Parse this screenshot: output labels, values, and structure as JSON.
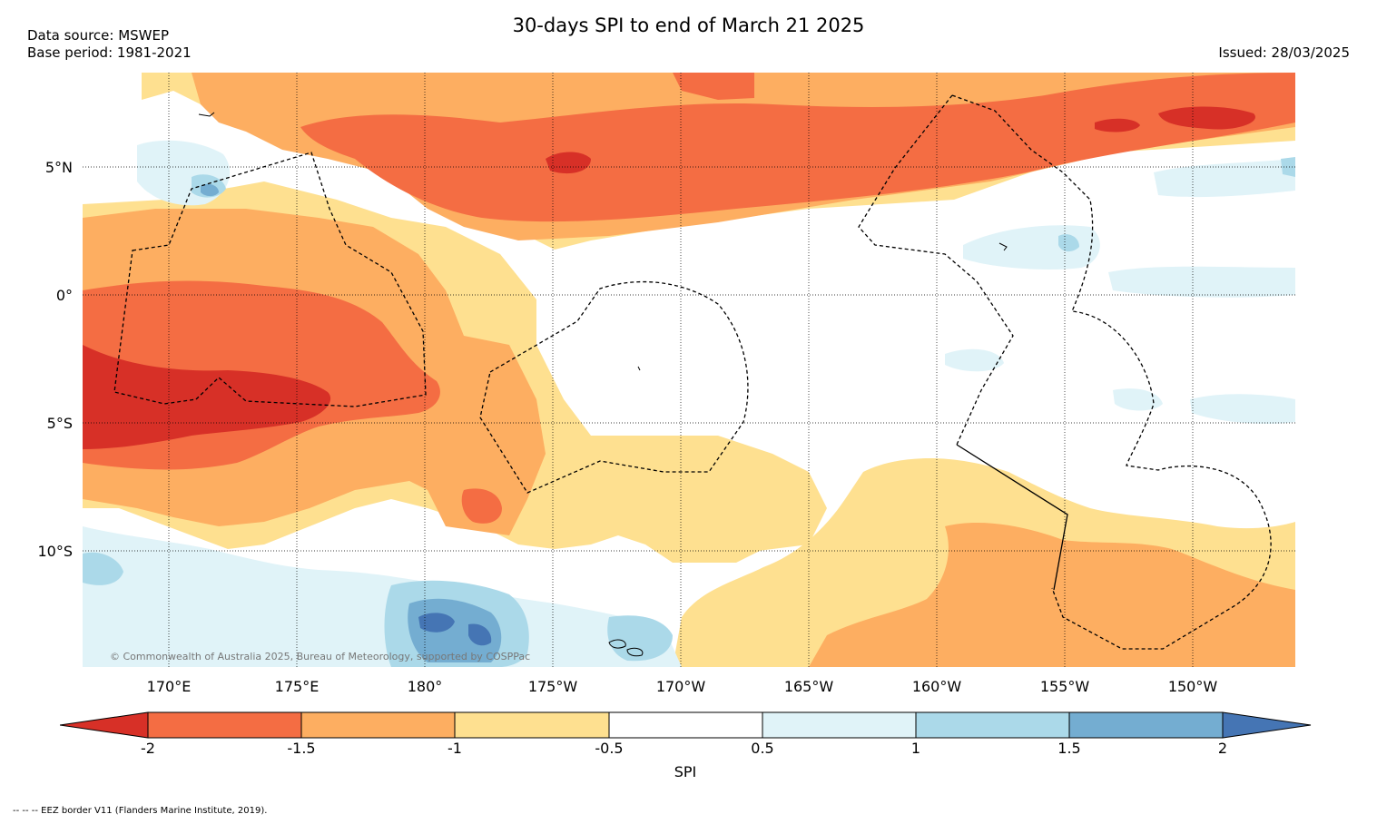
{
  "title": "30-days SPI to end of March 21 2025",
  "data_source": "Data source: MSWEP",
  "base_period": "Base period: 1981-2021",
  "issued": "Issued: 28/03/2025",
  "copyright": "© Commonwealth of Australia 2025, Bureau of Meteorology, supported by COSPPac",
  "footnote": "--  --  -- EEZ border V11 (Flanders Marine Institute, 2019).",
  "lat_labels": [
    "5°N",
    "0°",
    "5°S",
    "10°S"
  ],
  "lon_labels": [
    "170°E",
    "175°E",
    "180°",
    "175°W",
    "170°W",
    "165°W",
    "160°W",
    "155°W",
    "150°W"
  ],
  "colorbar": {
    "ticks": [
      "-2",
      "-1.5",
      "-1",
      "-0.5",
      "0.5",
      "1",
      "1.5",
      "2"
    ],
    "label": "SPI",
    "colors": [
      "#d73027",
      "#f46d43",
      "#fdae61",
      "#fee090",
      "#ffffff",
      "#e0f3f8",
      "#abd9e9",
      "#74add1",
      "#4575b4"
    ]
  }
}
